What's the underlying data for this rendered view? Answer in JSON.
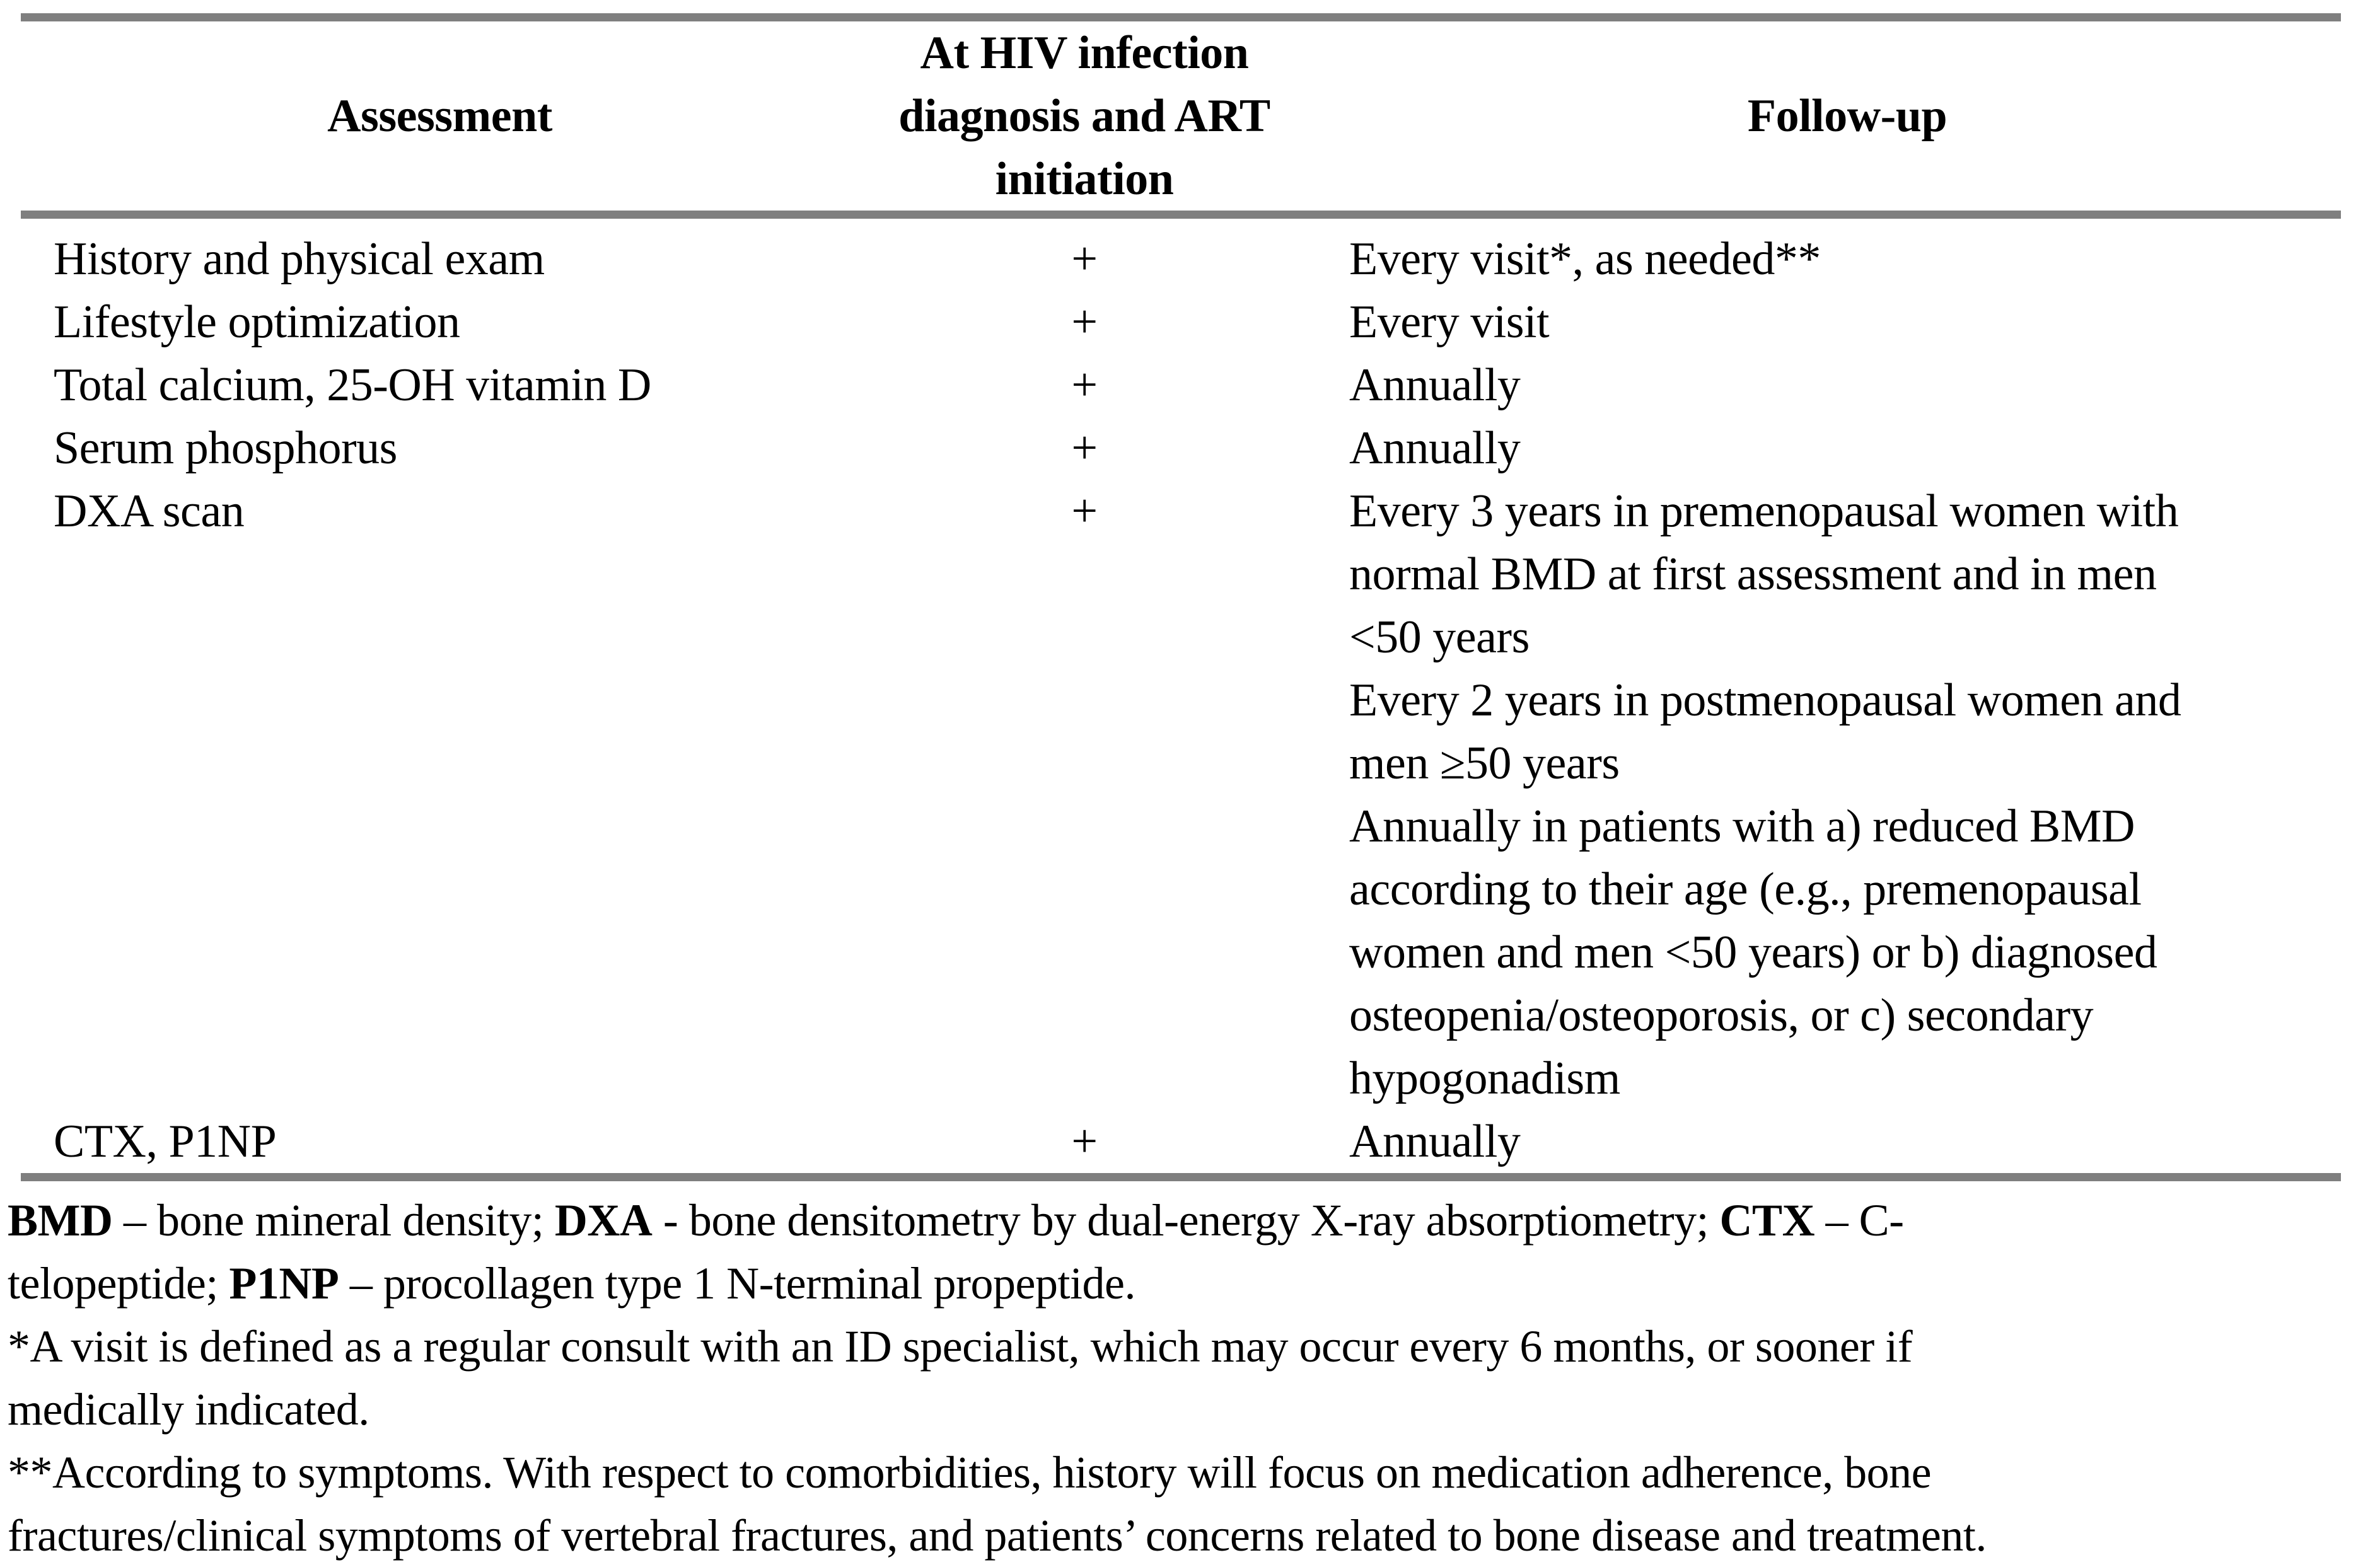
{
  "table": {
    "headers": {
      "assessment": "Assessment",
      "initiation": "At HIV infection\ndiagnosis and ART\ninitiation",
      "followup": "Follow-up"
    },
    "rows": [
      {
        "assessment": "History and physical exam",
        "initiation": "+",
        "followup": "Every visit*, as needed**"
      },
      {
        "assessment": "Lifestyle optimization",
        "initiation": "+",
        "followup": "Every visit"
      },
      {
        "assessment": "Total calcium, 25-OH vitamin D",
        "initiation": "+",
        "followup": "Annually"
      },
      {
        "assessment": "Serum phosphorus",
        "initiation": "+",
        "followup": "Annually"
      },
      {
        "assessment": "DXA scan",
        "initiation": "+",
        "followup": "Every 3 years in premenopausal women with\nnormal BMD at first assessment and in men\n<50 years\nEvery 2 years in postmenopausal women and\nmen ≥50 years\nAnnually in patients with a) reduced BMD\naccording to their age (e.g., premenopausal\nwomen and men <50 years) or b) diagnosed\nosteopenia/osteoporosis, or c) secondary\nhypogonadism"
      },
      {
        "assessment": "CTX, P1NP",
        "initiation": "+",
        "followup": "Annually"
      }
    ]
  },
  "footnotes": {
    "abbrev": {
      "segments": [
        {
          "t": "BMD",
          "b": true
        },
        {
          "t": " – bone mineral density; "
        },
        {
          "t": "DXA",
          "b": true
        },
        {
          "t": " - bone densitometry by dual-energy X-ray absorptiometry; "
        },
        {
          "t": "CTX",
          "b": true
        },
        {
          "t": " – C-\ntelopeptide; "
        },
        {
          "t": "P1NP",
          "b": true
        },
        {
          "t": " – procollagen type 1 N-terminal propeptide."
        }
      ]
    },
    "visit": "*A visit is defined as a regular consult with an ID specialist, which may occur every 6 months, or sooner if\nmedically indicated.",
    "symptoms": "**According to symptoms. With respect to comorbidities, history will focus on medication adherence, bone\nfractures/clinical symptoms of vertebral fractures, and patients’ concerns related to bone disease and treatment."
  },
  "colors": {
    "rule_gray": "#7f7f7f",
    "text": "#000000",
    "background": "#ffffff"
  }
}
